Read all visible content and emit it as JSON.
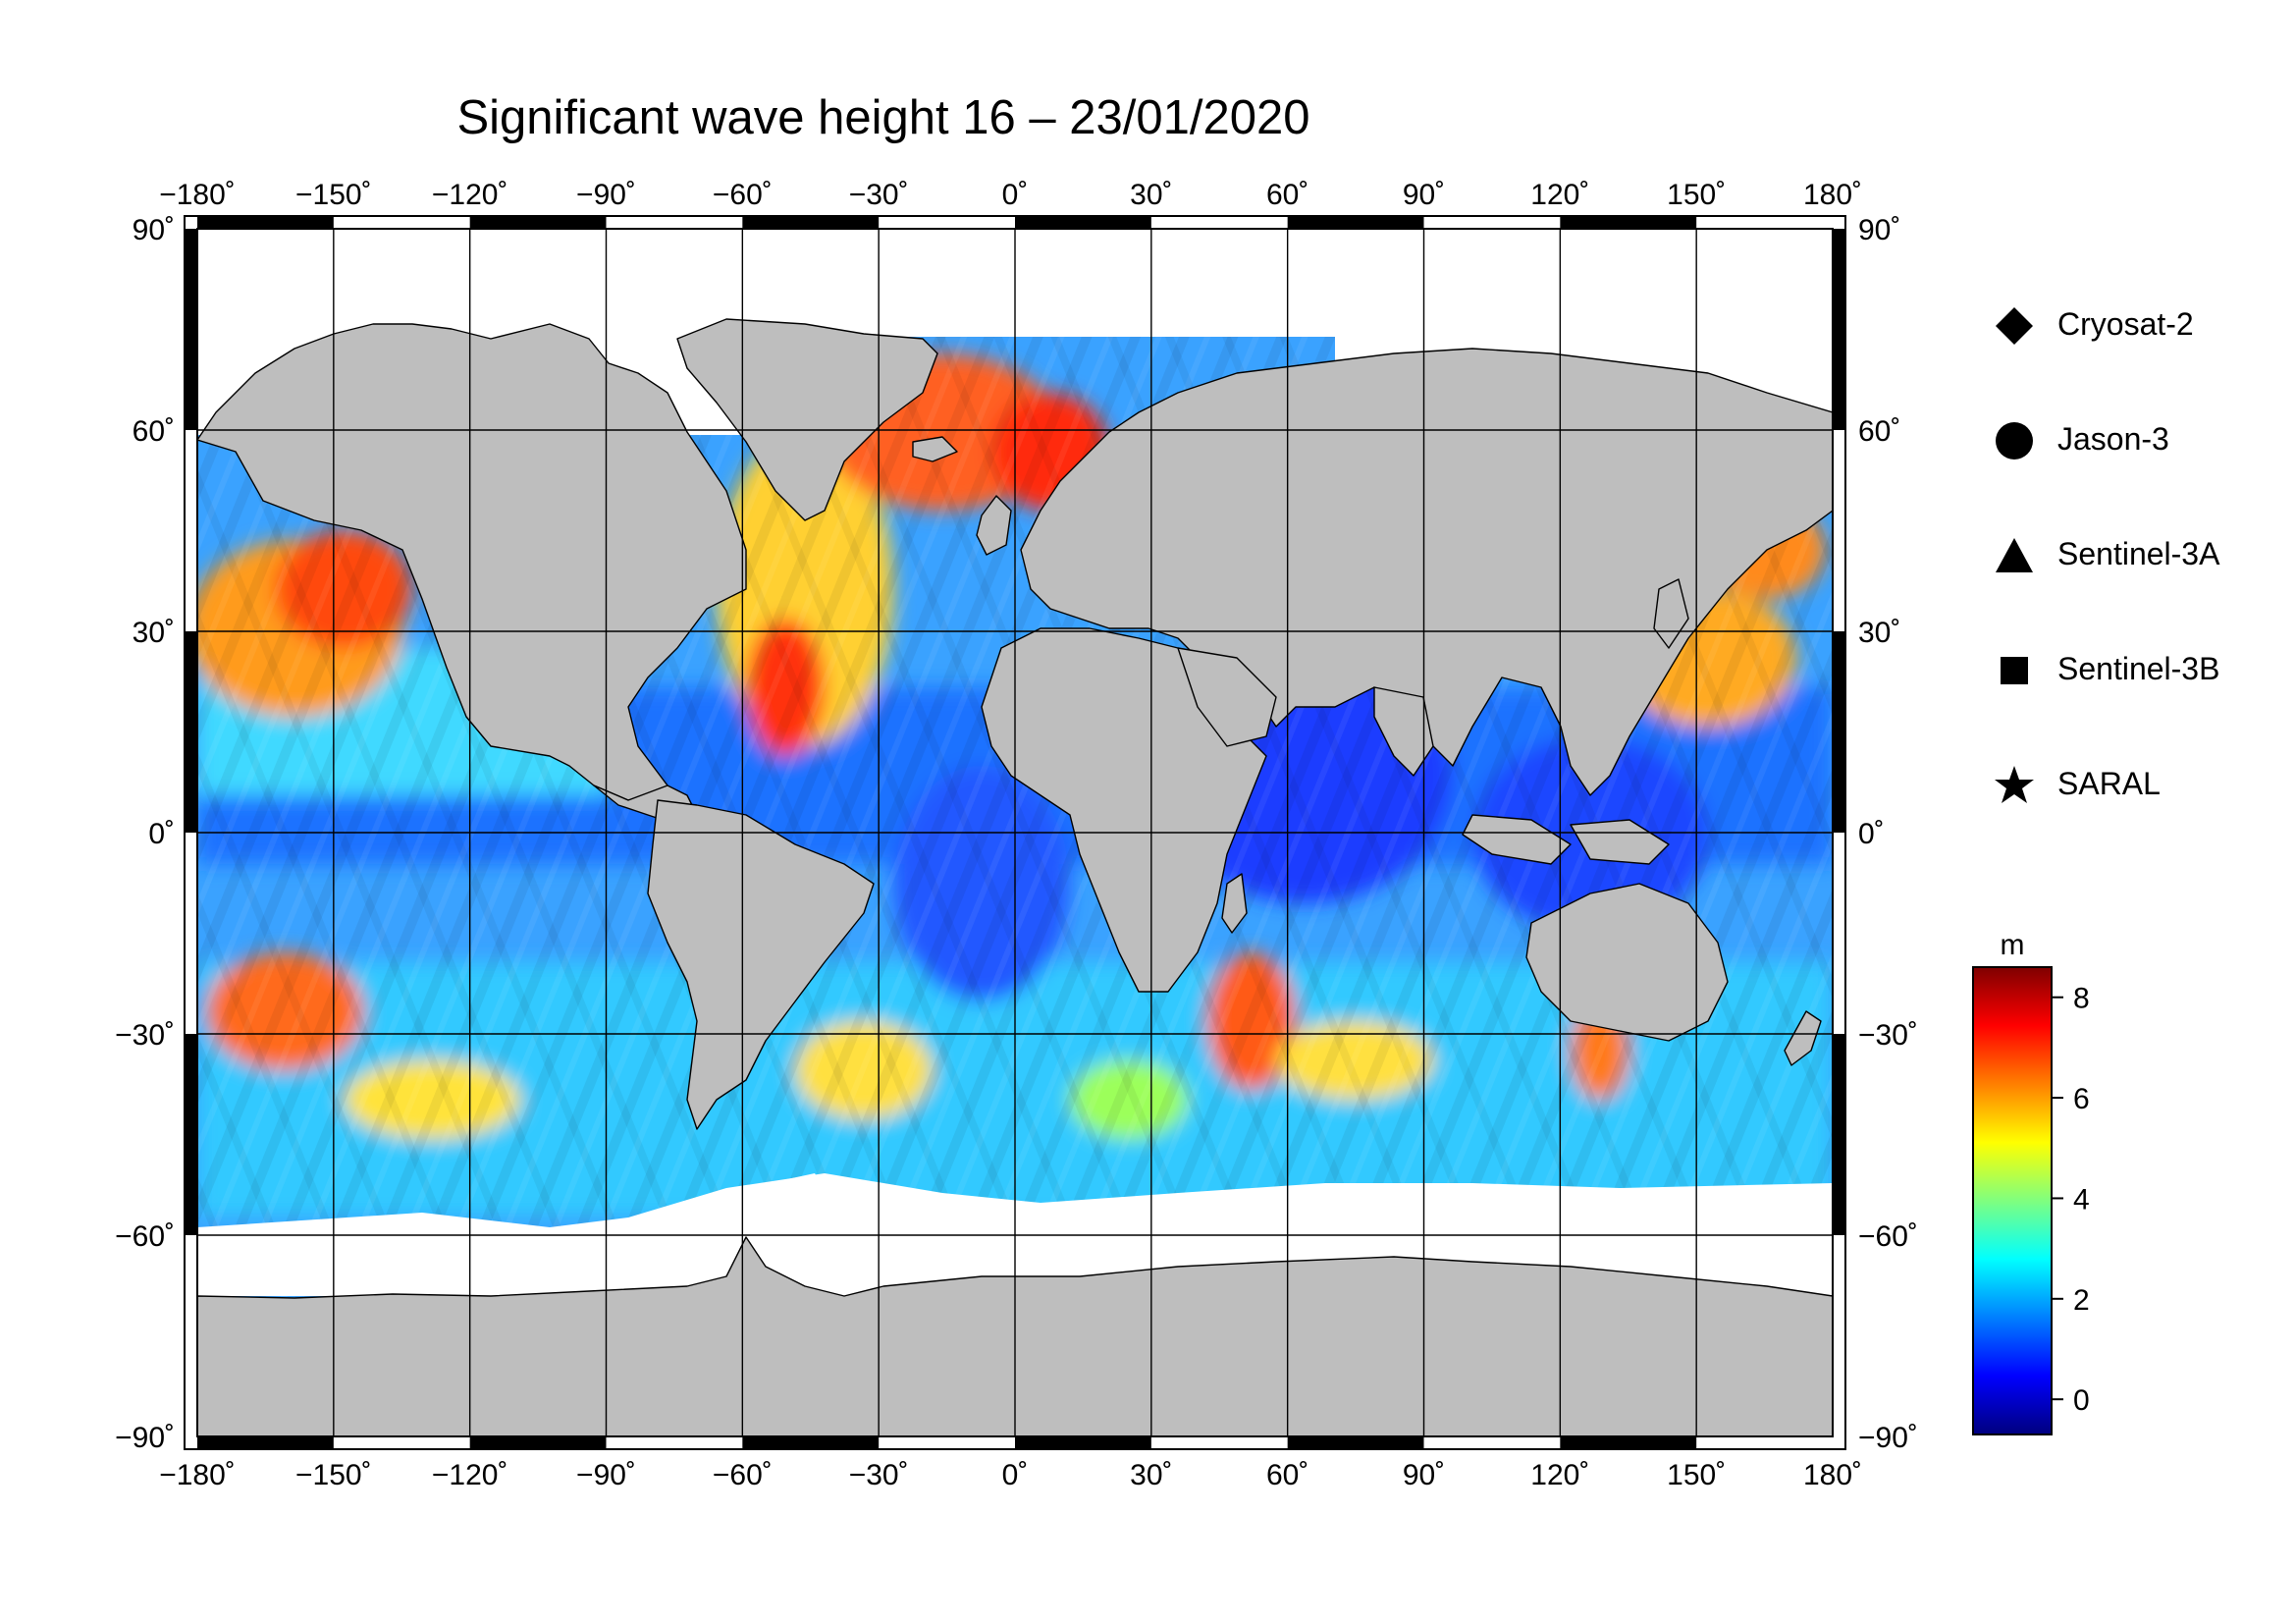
{
  "title": "Significant wave height 16 – 23/01/2020",
  "map": {
    "lon_range": [
      -180,
      180
    ],
    "lat_range": [
      -90,
      90
    ],
    "lon_ticks": [
      -180,
      -150,
      -120,
      -90,
      -60,
      -30,
      0,
      30,
      60,
      90,
      120,
      150,
      180
    ],
    "lat_ticks": [
      90,
      60,
      30,
      0,
      -30,
      -60,
      -90
    ],
    "lon_tick_labels": [
      "−180˚",
      "−150˚",
      "−120˚",
      "−90˚",
      "−60˚",
      "−30˚",
      "0˚",
      "30˚",
      "60˚",
      "90˚",
      "120˚",
      "150˚",
      "180˚"
    ],
    "lat_tick_labels": [
      "90˚",
      "60˚",
      "30˚",
      "0˚",
      "−30˚",
      "−60˚",
      "−90˚"
    ],
    "grid": true,
    "land_color": "#bebebe",
    "ice_color": "#ffffff"
  },
  "legend": {
    "placement": "right",
    "items": [
      {
        "label": "Cryosat-2",
        "symbol": "diamond"
      },
      {
        "label": "Jason-3",
        "symbol": "circle"
      },
      {
        "label": "Sentinel-3A",
        "symbol": "triangle"
      },
      {
        "label": "Sentinel-3B",
        "symbol": "square"
      },
      {
        "label": "SARAL",
        "symbol": "star"
      }
    ]
  },
  "colorbar": {
    "unit": "m",
    "range": [
      -0.7,
      8.6
    ],
    "ticks": [
      0,
      2,
      4,
      6,
      8
    ],
    "tick_labels": [
      "0",
      "2",
      "4",
      "6",
      "8"
    ],
    "colormap": [
      "#00007f",
      "#0000ff",
      "#007fff",
      "#00ffff",
      "#7fff7f",
      "#ffff00",
      "#ff7f00",
      "#ff0000",
      "#7f0000"
    ]
  },
  "chart_data": {
    "type": "heatmap",
    "title": "Significant wave height 16 – 23/01/2020",
    "xlabel": "",
    "ylabel": "",
    "xlim": [
      -180,
      180
    ],
    "ylim": [
      -90,
      90
    ],
    "value_unit": "m",
    "value_range": [
      -0.7,
      8.6
    ],
    "approx_regions": [
      {
        "lon": [
          -170,
          -135
        ],
        "lat": [
          30,
          55
        ],
        "value": 6.5
      },
      {
        "lon": [
          -170,
          -145
        ],
        "lat": [
          -45,
          -25
        ],
        "value": 6.0
      },
      {
        "lon": [
          -60,
          -20
        ],
        "lat": [
          25,
          65
        ],
        "value": 6.5
      },
      {
        "lon": [
          -20,
          10
        ],
        "lat": [
          55,
          75
        ],
        "value": 7.0
      },
      {
        "lon": [
          40,
          60
        ],
        "lat": [
          -45,
          -30
        ],
        "value": 6.5
      },
      {
        "lon": [
          140,
          175
        ],
        "lat": [
          30,
          45
        ],
        "value": 6.0
      },
      {
        "lon": [
          120,
          135
        ],
        "lat": [
          -50,
          -40
        ],
        "value": 6.0
      },
      {
        "lon": [
          -170,
          -120
        ],
        "lat": [
          -10,
          25
        ],
        "value": 3.0
      },
      {
        "lon": [
          50,
          100
        ],
        "lat": [
          -15,
          25
        ],
        "value": 1.5
      }
    ]
  }
}
